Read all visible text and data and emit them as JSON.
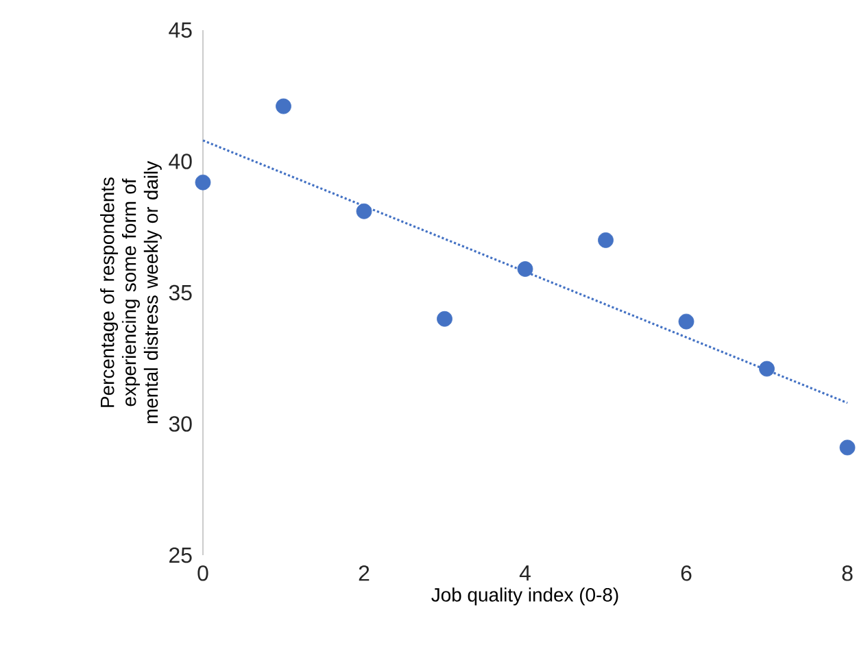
{
  "chart_data": {
    "type": "scatter",
    "xlabel": "Job quality index (0-8)",
    "ylabel": "Percentage of respondents experiencing some form of mental distress weekly or daily",
    "xlim": [
      0,
      8
    ],
    "ylim": [
      25,
      45
    ],
    "xticks": [
      0,
      2,
      4,
      6,
      8
    ],
    "yticks": [
      25,
      30,
      35,
      40,
      45
    ],
    "grid": false,
    "series": [
      {
        "color": "#4472c4",
        "marker": "circle",
        "x": [
          0,
          1,
          2,
          3,
          4,
          5,
          6,
          7,
          8
        ],
        "values": [
          39.2,
          42.1,
          38.1,
          34.0,
          35.9,
          37.0,
          33.9,
          32.1,
          29.1
        ]
      },
      {
        "type": "line",
        "color": "#4472c4",
        "line_style": "dotted",
        "marker": "none",
        "x": [
          0,
          8
        ],
        "values": [
          40.8,
          30.8
        ]
      }
    ]
  }
}
